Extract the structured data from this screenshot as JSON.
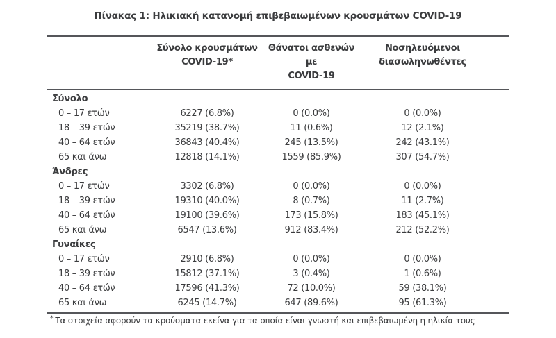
{
  "title": "Πίνακας 1: Ηλικιακή κατανομή επιβεβαιωμένων κρουσμάτων COVID-19",
  "table": {
    "columns": [
      {
        "line1": "Σύνολο κρουσμάτων",
        "line2": "COVID-19*"
      },
      {
        "line1": "Θάνατοι ασθενών με",
        "line2": "COVID-19"
      },
      {
        "line1": "Νοσηλευόμενοι",
        "line2": "διασωληνωθέντες"
      }
    ],
    "groups": [
      {
        "label": "Σύνολο",
        "rows": [
          {
            "age": "0 – 17 ετών",
            "cases": "6227 (6.8%)",
            "deaths": "0 (0.0%)",
            "intubated": "0 (0.0%)"
          },
          {
            "age": "18 – 39 ετών",
            "cases": "35219 (38.7%)",
            "deaths": "11 (0.6%)",
            "intubated": "12 (2.1%)"
          },
          {
            "age": "40 – 64 ετών",
            "cases": "36843 (40.4%)",
            "deaths": "245 (13.5%)",
            "intubated": "242 (43.1%)"
          },
          {
            "age": "65 και άνω",
            "cases": "12818 (14.1%)",
            "deaths": "1559 (85.9%)",
            "intubated": "307 (54.7%)"
          }
        ]
      },
      {
        "label": "Άνδρες",
        "rows": [
          {
            "age": "0 – 17 ετών",
            "cases": "3302 (6.8%)",
            "deaths": "0 (0.0%)",
            "intubated": "0 (0.0%)"
          },
          {
            "age": "18 – 39 ετών",
            "cases": "19310 (40.0%)",
            "deaths": "8 (0.7%)",
            "intubated": "11 (2.7%)"
          },
          {
            "age": "40 – 64 ετών",
            "cases": "19100 (39.6%)",
            "deaths": "173 (15.8%)",
            "intubated": "183 (45.1%)"
          },
          {
            "age": "65 και άνω",
            "cases": "6547 (13.6%)",
            "deaths": "912 (83.4%)",
            "intubated": "212 (52.2%)"
          }
        ]
      },
      {
        "label": "Γυναίκες",
        "rows": [
          {
            "age": "0 – 17 ετών",
            "cases": "2910 (6.8%)",
            "deaths": "0 (0.0%)",
            "intubated": "0 (0.0%)"
          },
          {
            "age": "18 – 39 ετών",
            "cases": "15812 (37.1%)",
            "deaths": "3 (0.4%)",
            "intubated": "1 (0.6%)"
          },
          {
            "age": "40 – 64 ετών",
            "cases": "17596 (41.3%)",
            "deaths": "72 (10.0%)",
            "intubated": "59 (38.1%)"
          },
          {
            "age": "65 και άνω",
            "cases": "6245 (14.7%)",
            "deaths": "647 (89.6%)",
            "intubated": "95 (61.3%)"
          }
        ]
      }
    ],
    "footnote_marker": "*",
    "footnote": "Τα στοιχεία αφορούν τα κρούσματα εκείνα για τα οποία είναι γνωστή και επιβεβαιωμένη η ηλικία τους"
  },
  "chart_data": {
    "type": "table",
    "title": "Πίνακας 1: Ηλικιακή κατανομή επιβεβαιωμένων κρουσμάτων COVID-19",
    "columns": [
      "",
      "Σύνολο κρουσμάτων COVID-19*",
      "Θάνατοι ασθενών με COVID-19",
      "Νοσηλευόμενοι διασωληνωθέντες"
    ],
    "rows": [
      [
        "Σύνολο",
        "",
        "",
        ""
      ],
      [
        "0 – 17 ετών",
        "6227 (6.8%)",
        "0 (0.0%)",
        "0 (0.0%)"
      ],
      [
        "18 – 39 ετών",
        "35219 (38.7%)",
        "11 (0.6%)",
        "12 (2.1%)"
      ],
      [
        "40 – 64 ετών",
        "36843 (40.4%)",
        "245 (13.5%)",
        "242 (43.1%)"
      ],
      [
        "65 και άνω",
        "12818 (14.1%)",
        "1559 (85.9%)",
        "307 (54.7%)"
      ],
      [
        "Άνδρες",
        "",
        "",
        ""
      ],
      [
        "0 – 17 ετών",
        "3302 (6.8%)",
        "0 (0.0%)",
        "0 (0.0%)"
      ],
      [
        "18 – 39 ετών",
        "19310 (40.0%)",
        "8 (0.7%)",
        "11 (2.7%)"
      ],
      [
        "40 – 64 ετών",
        "19100 (39.6%)",
        "173 (15.8%)",
        "183 (45.1%)"
      ],
      [
        "65 και άνω",
        "6547 (13.6%)",
        "912 (83.4%)",
        "212 (52.2%)"
      ],
      [
        "Γυναίκες",
        "",
        "",
        ""
      ],
      [
        "0 – 17 ετών",
        "2910 (6.8%)",
        "0 (0.0%)",
        "0 (0.0%)"
      ],
      [
        "18 – 39 ετών",
        "15812 (37.1%)",
        "3 (0.4%)",
        "1 (0.6%)"
      ],
      [
        "40 – 64 ετών",
        "17596 (41.3%)",
        "72 (10.0%)",
        "59 (38.1%)"
      ],
      [
        "65 και άνω",
        "6245 (14.7%)",
        "647 (89.6%)",
        "95 (61.3%)"
      ]
    ]
  },
  "colors": {
    "text": "#3b3c3e",
    "rule": "#55565a",
    "background": "#ffffff"
  }
}
